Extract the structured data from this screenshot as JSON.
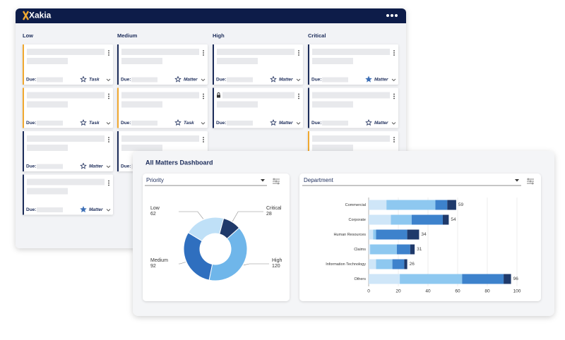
{
  "brand": "Xakia",
  "board": {
    "columns": [
      {
        "title": "Low",
        "cards": [
          {
            "color": "#f0a830",
            "due": "Due:",
            "tag": "Task",
            "starred": false
          },
          {
            "color": "#f0a830",
            "due": "Due:",
            "tag": "Task",
            "starred": false
          },
          {
            "color": "#1c2c5a",
            "due": "Due:",
            "tag": "Matter",
            "starred": false
          },
          {
            "color": "#1c2c5a",
            "due": "Due:",
            "tag": "Matter",
            "starred": true
          }
        ]
      },
      {
        "title": "Medium",
        "cards": [
          {
            "color": "#1c2c5a",
            "due": "Due:",
            "tag": "Matter",
            "starred": false
          },
          {
            "color": "#f0a830",
            "due": "Due:",
            "tag": "Task",
            "starred": false
          },
          {
            "color": "#1c2c5a",
            "due": "Due:"
          }
        ]
      },
      {
        "title": "High",
        "cards": [
          {
            "color": "#1c2c5a",
            "due": "Due:",
            "tag": "Matter",
            "starred": false
          },
          {
            "color": "#1c2c5a",
            "due": "Due:",
            "tag": "Matter",
            "starred": false,
            "locked": true
          }
        ]
      },
      {
        "title": "Critical",
        "cards": [
          {
            "color": "#1c2c5a",
            "due": "Due:",
            "tag": "Matter",
            "starred": true
          },
          {
            "color": "#1c2c5a",
            "due": "Due:",
            "tag": "Matter",
            "starred": false
          },
          {
            "color": "#f0a830"
          }
        ]
      }
    ]
  },
  "dashboard_title": "All Matters Dashboard",
  "chart_data": [
    {
      "type": "pie",
      "title": "Priority",
      "categories": [
        "Critical",
        "High",
        "Medium",
        "Low"
      ],
      "values": [
        28,
        120,
        92,
        62
      ],
      "colors": [
        "#1f3a6b",
        "#6fb6ea",
        "#2f6fbf",
        "#bfe0f7"
      ]
    },
    {
      "type": "bar",
      "orientation": "horizontal",
      "stacked": true,
      "title": "Department",
      "categories": [
        "Commercial",
        "Corporate",
        "Human Resources",
        "Claims",
        "Information Technology",
        "Others"
      ],
      "series": [
        {
          "color": "#cfe6f8",
          "values": [
            12,
            15,
            3,
            1,
            5,
            21
          ]
        },
        {
          "color": "#8ec8f0",
          "values": [
            33,
            14,
            2,
            18,
            11,
            42
          ]
        },
        {
          "color": "#3d82cc",
          "values": [
            8,
            21,
            21,
            9,
            8,
            28
          ]
        },
        {
          "color": "#1f3a6b",
          "values": [
            6,
            4,
            8,
            3,
            2,
            5
          ]
        }
      ],
      "totals": [
        59,
        54,
        34,
        31,
        26,
        96
      ],
      "xlim": [
        0,
        100
      ],
      "xticks": [
        0,
        20,
        40,
        60,
        80,
        100
      ],
      "grid": true
    }
  ]
}
